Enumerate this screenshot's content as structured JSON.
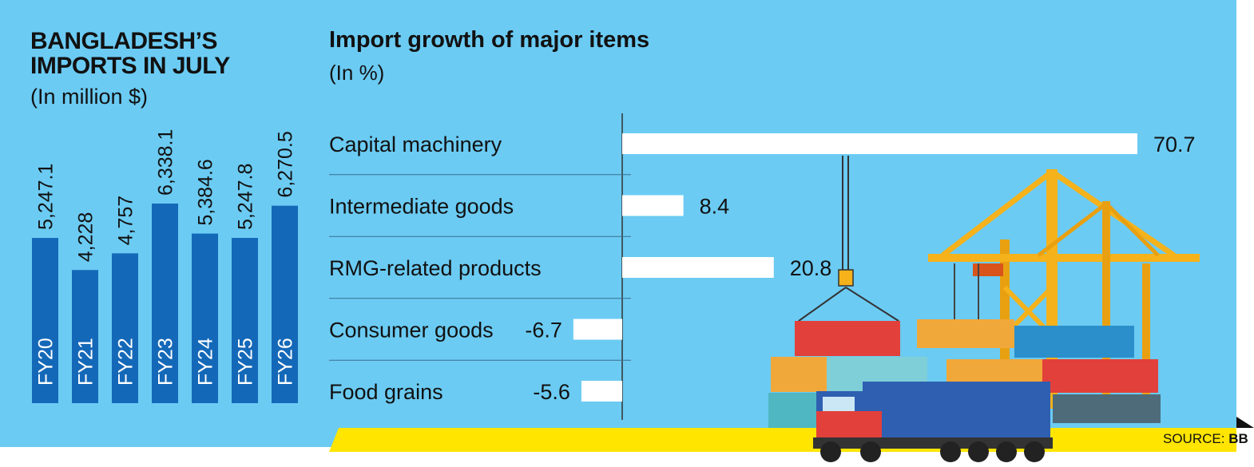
{
  "left_panel": {
    "title": "BANGLADESH’S IMPORTS IN JULY",
    "subtitle": "(In million $)"
  },
  "right_panel": {
    "title": "Import growth of major items",
    "subtitle": "(In %)"
  },
  "source": {
    "label": "SOURCE:",
    "value": "BB"
  },
  "colors": {
    "background": "#6bcbf3",
    "bar_blue": "#1468b8",
    "bar_white": "#ffffff",
    "ground": "#ffe500",
    "crane": "#f5b21b"
  },
  "chart_data": [
    {
      "type": "bar",
      "title": "BANGLADESH’S IMPORTS IN JULY",
      "ylabel": "(In million $)",
      "categories": [
        "FY20",
        "FY21",
        "FY22",
        "FY23",
        "FY24",
        "FY25",
        "FY26"
      ],
      "values": [
        5247.1,
        4228,
        4757,
        6338.1,
        5384.6,
        5247.8,
        6270.5
      ],
      "value_labels": [
        "5,247.1",
        "4,228",
        "4,757",
        "6,338.1",
        "5,384.6",
        "5,247.8",
        "6,270.5"
      ],
      "ylim": [
        0,
        7000
      ]
    },
    {
      "type": "bar",
      "orientation": "horizontal",
      "title": "Import growth of major items",
      "xlabel": "(In %)",
      "categories": [
        "Capital machinery",
        "Intermediate goods",
        "RMG-related products",
        "Consumer goods",
        "Food grains"
      ],
      "values": [
        70.7,
        8.4,
        20.8,
        -6.7,
        -5.6
      ],
      "value_labels": [
        "70.7",
        "8.4",
        "20.8",
        "-6.7",
        "-5.6"
      ]
    }
  ]
}
